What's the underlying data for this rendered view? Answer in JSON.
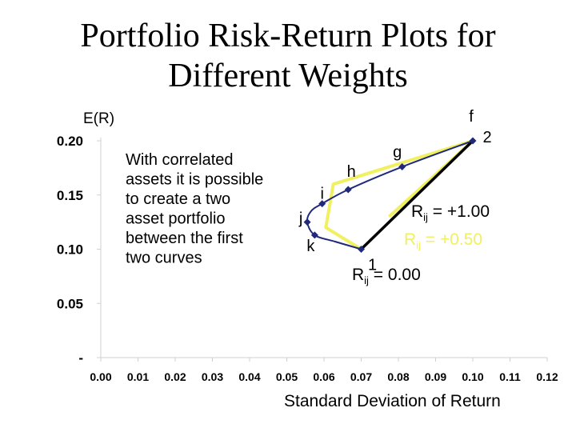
{
  "title_line1": "Portfolio Risk-Return Plots for",
  "title_line2": "Different Weights",
  "chart_data": {
    "type": "line",
    "ylabel": "E(R)",
    "xlabel": "Standard Deviation of Return",
    "xlim": [
      0.0,
      0.12
    ],
    "ylim": [
      0.0,
      0.2
    ],
    "x_ticks": [
      "0.00",
      "0.01",
      "0.02",
      "0.03",
      "0.04",
      "0.05",
      "0.06",
      "0.07",
      "0.08",
      "0.09",
      "0.10",
      "0.11",
      "0.12"
    ],
    "y_ticks": [
      "-",
      "0.05",
      "0.10",
      "0.15",
      "0.20"
    ],
    "y_tick_values": [
      0.0,
      0.05,
      0.1,
      0.15,
      0.2
    ],
    "grid": false,
    "colors": {
      "rho_1": "#000000",
      "rho_050": "#f0f060",
      "rho_0": "#1f2a7a",
      "text": "#000000"
    },
    "series": [
      {
        "id": "rho_1",
        "points": [
          [
            0.07,
            0.1
          ],
          [
            0.1,
            0.2
          ]
        ]
      },
      {
        "id": "rho_050",
        "points": [
          [
            0.07,
            0.1
          ],
          [
            0.0605,
            0.12
          ],
          [
            0.0625,
            0.16
          ],
          [
            0.1,
            0.2
          ]
        ]
      },
      {
        "id": "rho_050_alt",
        "points": [
          [
            0.0775,
            0.13
          ],
          [
            0.1,
            0.2
          ]
        ]
      },
      {
        "id": "rho_0",
        "points": [
          [
            0.07,
            0.1
          ],
          [
            0.063,
            0.107
          ],
          [
            0.0575,
            0.113
          ],
          [
            0.0555,
            0.125
          ],
          [
            0.0565,
            0.135
          ],
          [
            0.0595,
            0.142
          ],
          [
            0.0665,
            0.155
          ],
          [
            0.081,
            0.176
          ],
          [
            0.1,
            0.2
          ]
        ]
      }
    ],
    "markers": [
      {
        "label": "1",
        "x": 0.07,
        "y": 0.1
      },
      {
        "label": "2",
        "x": 0.1,
        "y": 0.2
      },
      {
        "label": "f",
        "x": 0.1,
        "y": 0.2
      },
      {
        "label": "g",
        "x": 0.081,
        "y": 0.176
      },
      {
        "label": "h",
        "x": 0.0665,
        "y": 0.155
      },
      {
        "label": "i",
        "x": 0.0595,
        "y": 0.142
      },
      {
        "label": "j",
        "x": 0.0555,
        "y": 0.125
      },
      {
        "label": "k",
        "x": 0.0575,
        "y": 0.113
      }
    ],
    "annotations": {
      "note_lines": [
        "With correlated",
        "assets it is possible",
        "to create a two",
        "asset portfolio",
        "between the first",
        "two curves"
      ],
      "rho_1_prefix": "R",
      "rho_1_sub": "ij",
      "rho_1_value": " = +1.00",
      "rho_050_prefix": "R",
      "rho_050_sub": "ij",
      "rho_050_value": " = +0.50",
      "rho_0_prefix": "R",
      "rho_0_sub": "ij",
      "rho_0_value": " = 0.00"
    }
  }
}
